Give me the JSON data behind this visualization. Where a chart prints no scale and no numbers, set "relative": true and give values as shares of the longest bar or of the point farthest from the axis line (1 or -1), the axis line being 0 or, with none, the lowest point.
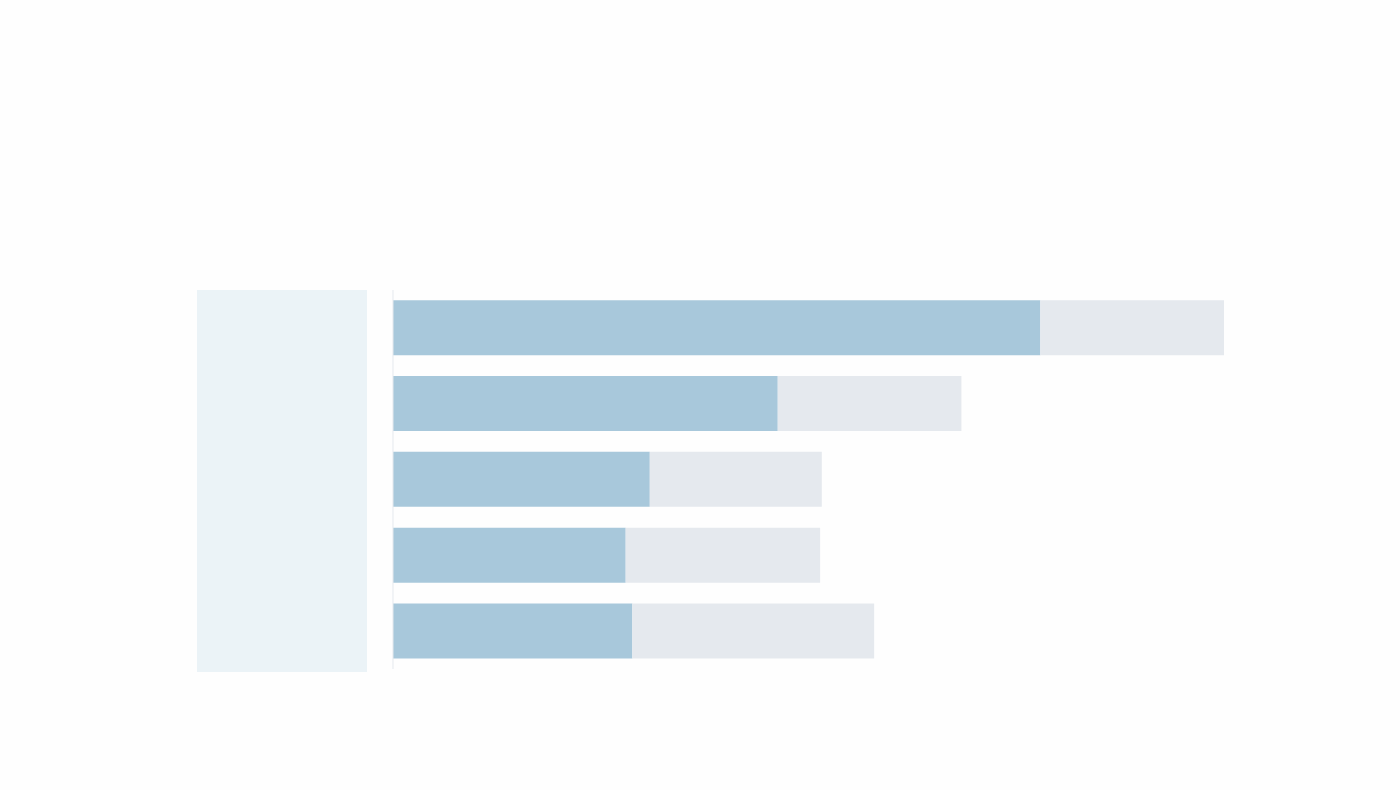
{
  "chart_data": {
    "type": "bar",
    "orientation": "horizontal",
    "stacked": true,
    "relative": true,
    "categories": [
      null,
      null,
      null,
      null,
      null
    ],
    "series": [
      {
        "color": "#a8c8db",
        "values": [
          0.779,
          0.463,
          0.309,
          0.28,
          0.288
        ]
      },
      {
        "color": "#e5e9ee",
        "values": [
          0.221,
          0.221,
          0.207,
          0.234,
          0.291
        ]
      }
    ]
  }
}
